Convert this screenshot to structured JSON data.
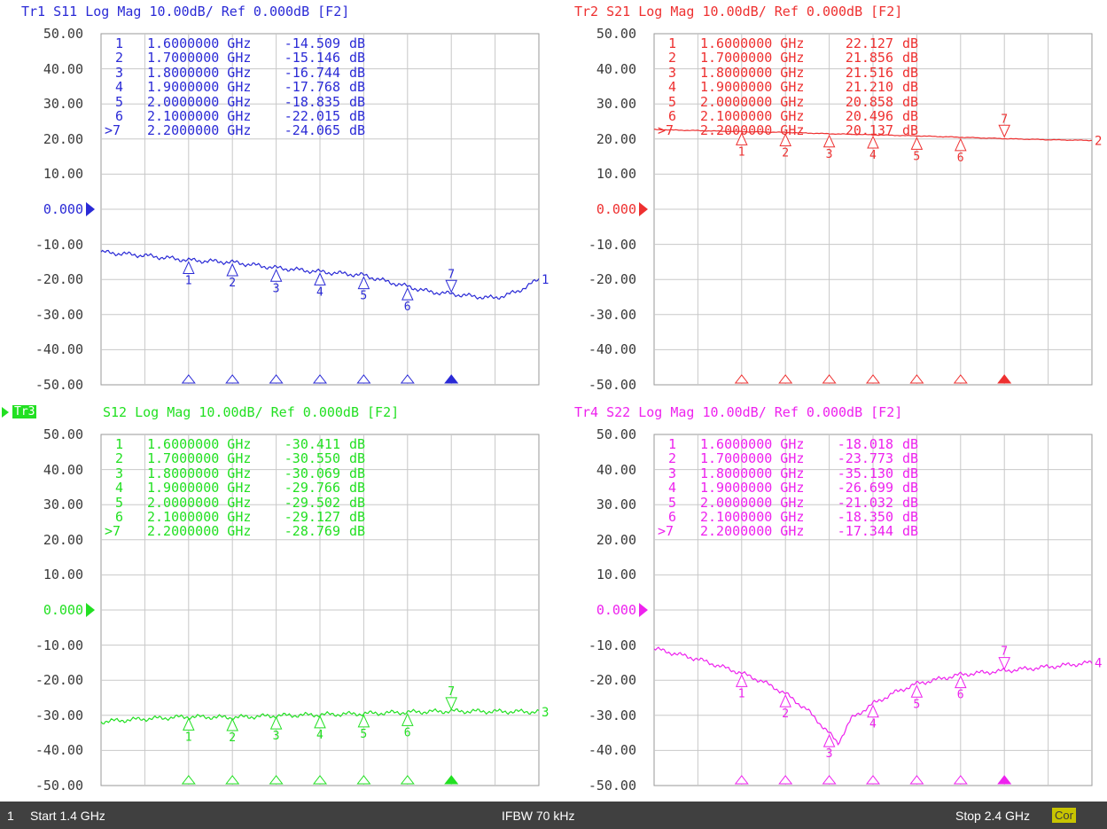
{
  "scale_labels": [
    "50.00",
    "40.00",
    "30.00",
    "20.00",
    "10.00",
    "0.000",
    "-10.00",
    "-20.00",
    "-30.00",
    "-40.00",
    "-50.00"
  ],
  "marker_x_ghz": [
    1.6,
    1.7,
    1.8,
    1.9,
    2.0,
    2.1,
    2.2
  ],
  "sweep": {
    "start_ghz": 1.4,
    "stop_ghz": 2.4,
    "ref_db": 0,
    "scale_db_per_div": 10
  },
  "traces": [
    {
      "id": "tr1",
      "color": "#2a2ad6",
      "title": "Tr1 S11 Log Mag 10.00dB/ Ref 0.000dB [F2]",
      "active": false,
      "end_label": "1",
      "markers": [
        {
          "num": "1",
          "freq": "1.6000000 GHz",
          "value": "-14.509",
          "unit": "dB"
        },
        {
          "num": "2",
          "freq": "1.7000000 GHz",
          "value": "-15.146",
          "unit": "dB"
        },
        {
          "num": "3",
          "freq": "1.8000000 GHz",
          "value": "-16.744",
          "unit": "dB"
        },
        {
          "num": "4",
          "freq": "1.9000000 GHz",
          "value": "-17.768",
          "unit": "dB"
        },
        {
          "num": "5",
          "freq": "2.0000000 GHz",
          "value": "-18.835",
          "unit": "dB"
        },
        {
          "num": "6",
          "freq": "2.1000000 GHz",
          "value": "-22.015",
          "unit": "dB"
        },
        {
          "num": ">7",
          "freq": "2.2000000 GHz",
          "value": "-24.065",
          "unit": "dB"
        }
      ],
      "curve": [
        [
          1.4,
          -12.2
        ],
        [
          1.5,
          -13.2
        ],
        [
          1.6,
          -14.5
        ],
        [
          1.7,
          -15.1
        ],
        [
          1.8,
          -16.7
        ],
        [
          1.9,
          -17.8
        ],
        [
          2.0,
          -18.8
        ],
        [
          2.05,
          -20.5
        ],
        [
          2.1,
          -22.0
        ],
        [
          2.15,
          -23.5
        ],
        [
          2.2,
          -24.1
        ],
        [
          2.25,
          -24.8
        ],
        [
          2.3,
          -25.3
        ],
        [
          2.35,
          -23.5
        ],
        [
          2.4,
          -20.0
        ]
      ]
    },
    {
      "id": "tr2",
      "color": "#ee3030",
      "title": "Tr2 S21 Log Mag 10.00dB/ Ref 0.000dB [F2]",
      "active": false,
      "end_label": "2",
      "markers": [
        {
          "num": "1",
          "freq": "1.6000000 GHz",
          "value": "22.127",
          "unit": "dB"
        },
        {
          "num": "2",
          "freq": "1.7000000 GHz",
          "value": "21.856",
          "unit": "dB"
        },
        {
          "num": "3",
          "freq": "1.8000000 GHz",
          "value": "21.516",
          "unit": "dB"
        },
        {
          "num": "4",
          "freq": "1.9000000 GHz",
          "value": "21.210",
          "unit": "dB"
        },
        {
          "num": "5",
          "freq": "2.0000000 GHz",
          "value": "20.858",
          "unit": "dB"
        },
        {
          "num": "6",
          "freq": "2.1000000 GHz",
          "value": "20.496",
          "unit": "dB"
        },
        {
          "num": ">7",
          "freq": "2.2000000 GHz",
          "value": "20.137",
          "unit": "dB"
        }
      ],
      "curve": [
        [
          1.4,
          22.7
        ],
        [
          1.5,
          22.4
        ],
        [
          1.6,
          22.1
        ],
        [
          1.7,
          21.9
        ],
        [
          1.8,
          21.5
        ],
        [
          1.9,
          21.2
        ],
        [
          2.0,
          20.9
        ],
        [
          2.1,
          20.5
        ],
        [
          2.2,
          20.1
        ],
        [
          2.3,
          19.8
        ],
        [
          2.4,
          19.6
        ]
      ]
    },
    {
      "id": "tr3",
      "color": "#22e022",
      "title": "S12 Log Mag 10.00dB/ Ref 0.000dB [F2]",
      "active": true,
      "active_label": "Tr3",
      "end_label": "3",
      "markers": [
        {
          "num": "1",
          "freq": "1.6000000 GHz",
          "value": "-30.411",
          "unit": "dB"
        },
        {
          "num": "2",
          "freq": "1.7000000 GHz",
          "value": "-30.550",
          "unit": "dB"
        },
        {
          "num": "3",
          "freq": "1.8000000 GHz",
          "value": "-30.069",
          "unit": "dB"
        },
        {
          "num": "4",
          "freq": "1.9000000 GHz",
          "value": "-29.766",
          "unit": "dB"
        },
        {
          "num": "5",
          "freq": "2.0000000 GHz",
          "value": "-29.502",
          "unit": "dB"
        },
        {
          "num": "6",
          "freq": "2.1000000 GHz",
          "value": "-29.127",
          "unit": "dB"
        },
        {
          "num": ">7",
          "freq": "2.2000000 GHz",
          "value": "-28.769",
          "unit": "dB"
        }
      ],
      "curve": [
        [
          1.4,
          -31.8
        ],
        [
          1.5,
          -31.0
        ],
        [
          1.6,
          -30.4
        ],
        [
          1.7,
          -30.6
        ],
        [
          1.8,
          -30.1
        ],
        [
          1.9,
          -29.8
        ],
        [
          2.0,
          -29.5
        ],
        [
          2.1,
          -29.1
        ],
        [
          2.2,
          -28.8
        ],
        [
          2.3,
          -28.9
        ],
        [
          2.4,
          -29.0
        ]
      ]
    },
    {
      "id": "tr4",
      "color": "#ee22ee",
      "title": "Tr4 S22 Log Mag 10.00dB/ Ref 0.000dB [F2]",
      "active": false,
      "end_label": "4",
      "markers": [
        {
          "num": "1",
          "freq": "1.6000000 GHz",
          "value": "-18.018",
          "unit": "dB"
        },
        {
          "num": "2",
          "freq": "1.7000000 GHz",
          "value": "-23.773",
          "unit": "dB"
        },
        {
          "num": "3",
          "freq": "1.8000000 GHz",
          "value": "-35.130",
          "unit": "dB"
        },
        {
          "num": "4",
          "freq": "1.9000000 GHz",
          "value": "-26.699",
          "unit": "dB"
        },
        {
          "num": "5",
          "freq": "2.0000000 GHz",
          "value": "-21.032",
          "unit": "dB"
        },
        {
          "num": "6",
          "freq": "2.1000000 GHz",
          "value": "-18.350",
          "unit": "dB"
        },
        {
          "num": ">7",
          "freq": "2.2000000 GHz",
          "value": "-17.344",
          "unit": "dB"
        }
      ],
      "curve": [
        [
          1.4,
          -11.0
        ],
        [
          1.5,
          -14.0
        ],
        [
          1.6,
          -18.0
        ],
        [
          1.65,
          -20.5
        ],
        [
          1.7,
          -23.8
        ],
        [
          1.75,
          -28.5
        ],
        [
          1.8,
          -35.1
        ],
        [
          1.82,
          -38.0
        ],
        [
          1.85,
          -31.0
        ],
        [
          1.9,
          -26.7
        ],
        [
          1.95,
          -23.5
        ],
        [
          2.0,
          -21.0
        ],
        [
          2.1,
          -18.4
        ],
        [
          2.2,
          -17.3
        ],
        [
          2.3,
          -16.2
        ],
        [
          2.4,
          -15.0
        ]
      ]
    }
  ],
  "status_bar": {
    "channel": "1",
    "start": "Start 1.4 GHz",
    "ifbw": "IFBW 70 kHz",
    "stop": "Stop 2.4 GHz",
    "cor": "Cor"
  }
}
